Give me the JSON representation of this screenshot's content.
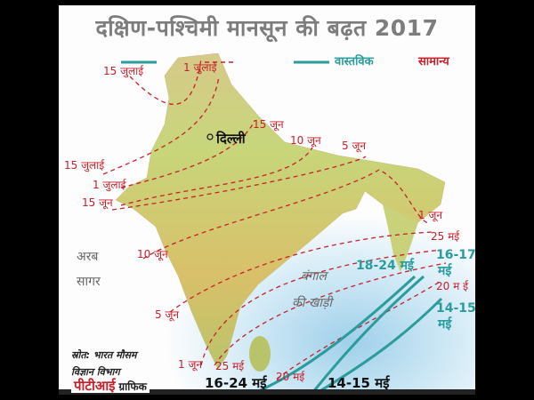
{
  "title": "दक्षिण-पश्चिमी मानसून की बढ़त 2017",
  "legend": {
    "actual": {
      "label": "वास्तविक",
      "color": "#2a9c9c",
      "style": "solid"
    },
    "normal": {
      "label": "सामान्य",
      "color": "#c8202a",
      "style": "dashed"
    }
  },
  "map": {
    "city": "दिल्ली",
    "seas": {
      "arabian_1": "अरब",
      "arabian_2": "सागर",
      "bay_1": "बंगाल",
      "bay_2": "की खाड़ी"
    },
    "normal_labels": [
      "15 जुलाई",
      "1 जुलाई",
      "15 जून",
      "10 जून",
      "5 जून",
      "15 जुलाई",
      "1 जुलाई",
      "15 जून",
      "1 जून",
      "25 मई",
      "10 जून",
      "20 म ई",
      "5 जून",
      "1 जून",
      "25 मई",
      "20 मई"
    ],
    "actual_labels": [
      "18-24 मई",
      "16-17",
      "मई",
      "14-15",
      "मई",
      "16-24 मई",
      "14-15 मई"
    ]
  },
  "source": {
    "line1": "स्रोत: भारत मौसम",
    "line2": "विज्ञान विभाग"
  },
  "credit": {
    "brand": "पीटीआई",
    "suffix": "ग्राफिक"
  }
}
